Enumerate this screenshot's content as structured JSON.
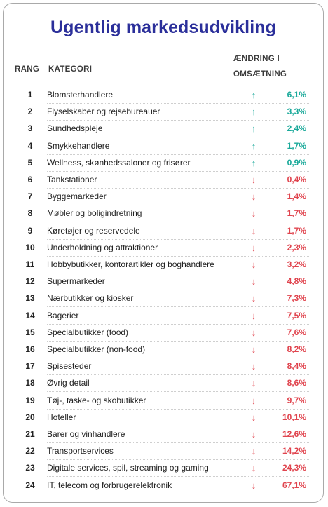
{
  "title": "Ugentlig markedsudvikling",
  "headers": {
    "rank": "RANG",
    "category": "KATEGORI",
    "change_line1": "ÆNDRING I",
    "change_line2": "OMSÆTNING"
  },
  "colors": {
    "title": "#2b2f9a",
    "up": "#1aa99a",
    "down": "#e0444e"
  },
  "rows": [
    {
      "rank": "1",
      "category": "Blomsterhandlere",
      "direction": "up",
      "change": "6,1%"
    },
    {
      "rank": "2",
      "category": "Flyselskaber og rejsebureauer",
      "direction": "up",
      "change": "3,3%"
    },
    {
      "rank": "3",
      "category": "Sundhedspleje",
      "direction": "up",
      "change": "2,4%"
    },
    {
      "rank": "4",
      "category": "Smykkehandlere",
      "direction": "up",
      "change": "1,7%"
    },
    {
      "rank": "5",
      "category": "Wellness, skønhedssaloner og frisører",
      "direction": "up",
      "change": "0,9%"
    },
    {
      "rank": "6",
      "category": "Tankstationer",
      "direction": "down",
      "change": "0,4%"
    },
    {
      "rank": "7",
      "category": "Byggemarkeder",
      "direction": "down",
      "change": "1,4%"
    },
    {
      "rank": "8",
      "category": "Møbler og boligindretning",
      "direction": "down",
      "change": "1,7%"
    },
    {
      "rank": "9",
      "category": "Køretøjer og reservedele",
      "direction": "down",
      "change": "1,7%"
    },
    {
      "rank": "10",
      "category": "Underholdning og attraktioner",
      "direction": "down",
      "change": "2,3%"
    },
    {
      "rank": "11",
      "category": "Hobbybutikker, kontorartikler og boghandlere",
      "direction": "down",
      "change": "3,2%"
    },
    {
      "rank": "12",
      "category": "Supermarkeder",
      "direction": "down",
      "change": "4,8%"
    },
    {
      "rank": "13",
      "category": "Nærbutikker og kiosker",
      "direction": "down",
      "change": "7,3%"
    },
    {
      "rank": "14",
      "category": "Bagerier",
      "direction": "down",
      "change": "7,5%"
    },
    {
      "rank": "15",
      "category": "Specialbutikker (food)",
      "direction": "down",
      "change": "7,6%"
    },
    {
      "rank": "16",
      "category": "Specialbutikker (non-food)",
      "direction": "down",
      "change": "8,2%"
    },
    {
      "rank": "17",
      "category": "Spisesteder",
      "direction": "down",
      "change": "8,4%"
    },
    {
      "rank": "18",
      "category": "Øvrig detail",
      "direction": "down",
      "change": "8,6%"
    },
    {
      "rank": "19",
      "category": "Tøj-, taske- og skobutikker",
      "direction": "down",
      "change": "9,7%"
    },
    {
      "rank": "20",
      "category": "Hoteller",
      "direction": "down",
      "change": "10,1%"
    },
    {
      "rank": "21",
      "category": "Barer og vinhandlere",
      "direction": "down",
      "change": "12,6%"
    },
    {
      "rank": "22",
      "category": "Transportservices",
      "direction": "down",
      "change": "14,2%"
    },
    {
      "rank": "23",
      "category": "Digitale services, spil, streaming og gaming",
      "direction": "down",
      "change": "24,3%"
    },
    {
      "rank": "24",
      "category": "IT, telecom og forbrugerelektronik",
      "direction": "down",
      "change": "67,1%"
    }
  ]
}
